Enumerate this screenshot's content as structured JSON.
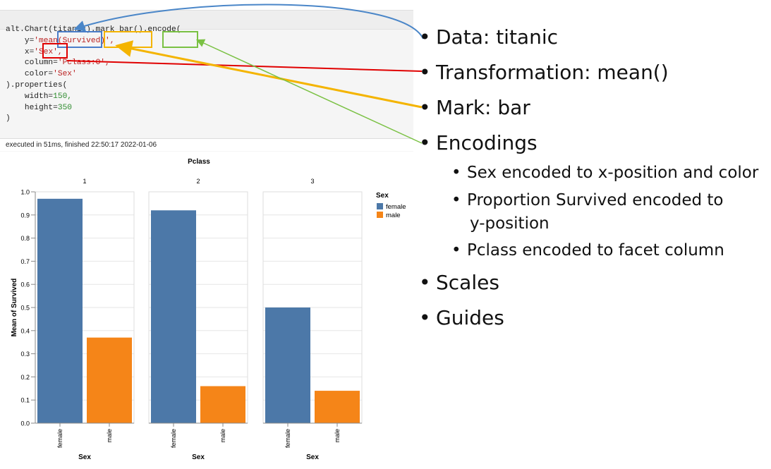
{
  "code": {
    "lines": [
      "alt.Chart(titanic).mark_bar().encode(",
      "    y='mean(Survived)',",
      "    x='Sex',",
      "    column='Pclass:O',",
      "    color='Sex'",
      ").properties(",
      "    width=150,",
      "    height=350",
      ")"
    ],
    "status": "executed in 51ms, finished 22:50:17 2022-01-06"
  },
  "annotations": {
    "box_colors": {
      "data": "#4a7dc9",
      "mark": "#f4b400",
      "encode": "#7ac143",
      "transform": "#e00000"
    }
  },
  "bullets": {
    "items": [
      {
        "label": "Data: titanic",
        "sub": []
      },
      {
        "label": "Transformation: mean()",
        "sub": []
      },
      {
        "label": "Mark: bar",
        "sub": []
      },
      {
        "label": "Encodings",
        "sub": [
          "Sex encoded to x-position and color",
          "Proportion Survived encoded to",
          "y-position",
          "Pclass encoded to facet column"
        ]
      },
      {
        "label": "Scales",
        "sub": []
      },
      {
        "label": "Guides",
        "sub": []
      }
    ]
  },
  "chart_data": {
    "type": "bar",
    "title": "",
    "facet_label": "Pclass",
    "facets": [
      "1",
      "2",
      "3"
    ],
    "categories": [
      "female",
      "male"
    ],
    "series": [
      {
        "facet": "1",
        "values": [
          0.97,
          0.37
        ]
      },
      {
        "facet": "2",
        "values": [
          0.92,
          0.16
        ]
      },
      {
        "facet": "3",
        "values": [
          0.5,
          0.14
        ]
      }
    ],
    "xlabel": "Sex",
    "ylabel": "Mean of Survived",
    "ylim": [
      0,
      1.0
    ],
    "yticks": [
      "0.0",
      "0.1",
      "0.2",
      "0.3",
      "0.4",
      "0.5",
      "0.6",
      "0.7",
      "0.8",
      "0.9",
      "1.0"
    ],
    "grid": true,
    "legend": {
      "title": "Sex",
      "entries": [
        "female",
        "male"
      ],
      "placement": "right"
    },
    "colors": {
      "female": "#4c78a8",
      "male": "#f58518"
    }
  }
}
